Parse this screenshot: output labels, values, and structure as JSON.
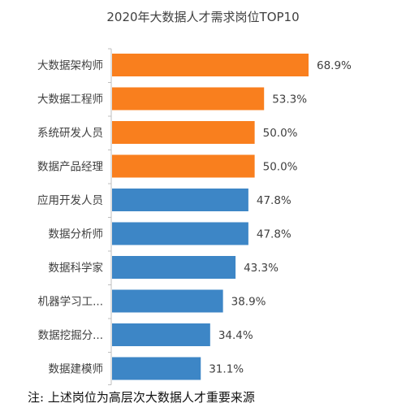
{
  "chart_data": {
    "type": "bar",
    "orientation": "horizontal",
    "title": "2020年大数据人才需求岗位TOP10",
    "categories": [
      "大数据架构师",
      "大数据工程师",
      "系统研发人员",
      "数据产品经理",
      "应用开发人员",
      "数据分析师",
      "数据科学家",
      "机器学习工...",
      "数据挖掘分...",
      "数据建模师"
    ],
    "values": [
      68.9,
      53.3,
      50.0,
      50.0,
      47.8,
      47.8,
      43.3,
      38.9,
      34.4,
      31.1
    ],
    "value_labels": [
      "68.9%",
      "53.3%",
      "50.0%",
      "50.0%",
      "47.8%",
      "47.8%",
      "43.3%",
      "38.9%",
      "34.4%",
      "31.1%"
    ],
    "bar_colors": [
      "#f97f1e",
      "#f97f1e",
      "#f97f1e",
      "#f97f1e",
      "#3d86c6",
      "#3d86c6",
      "#3d86c6",
      "#3d86c6",
      "#3d86c6",
      "#3d86c6"
    ],
    "axis_color": "#bfbfbf",
    "xlim": [
      0,
      70
    ],
    "grid": false,
    "legend": "none"
  },
  "footnote": "注:  上述岗位为高层次大数据人才重要来源"
}
